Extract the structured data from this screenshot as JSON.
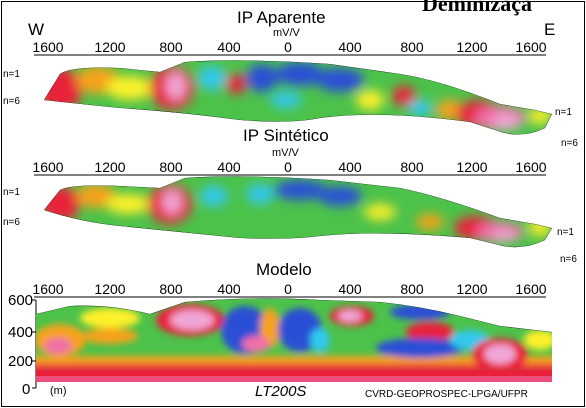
{
  "banner": "Deminizaçã",
  "direction": {
    "west": "W",
    "east": "E"
  },
  "panels": [
    {
      "title": "IP Aparente",
      "unit": "mV/V",
      "ticks": [
        "1600",
        "1200",
        "800",
        "400",
        "0",
        "400",
        "800",
        "1200",
        "1600"
      ],
      "left_levels": [
        "n=1",
        "n=6"
      ],
      "right_levels": [
        "n=1",
        "n=6"
      ]
    },
    {
      "title": "IP Sintético",
      "unit": "mV/V",
      "ticks": [
        "1600",
        "1200",
        "800",
        "400",
        "0",
        "400",
        "800",
        "1200",
        "1600"
      ],
      "left_levels": [
        "n=1",
        "n=6"
      ],
      "right_levels": [
        "n=1",
        "n=6"
      ]
    },
    {
      "title": "Modelo",
      "ticks": [
        "1600",
        "1200",
        "800",
        "400",
        "0",
        "400",
        "800",
        "1200",
        "1600"
      ],
      "depth_axis": [
        "600",
        "400",
        "200",
        "0"
      ],
      "depth_unit": "(m)"
    }
  ],
  "line_id": "LT200S",
  "credit": "CVRD-GEOPROSPEC-LPGA/UFPR",
  "colors": {
    "red": "#e8203a",
    "magenta": "#f26ea8",
    "pink": "#f0a6d6",
    "orange": "#f6a21c",
    "yellow": "#fcf02a",
    "green": "#4cc24a",
    "cyan": "#33c8ee",
    "blue": "#2a4fd6"
  }
}
